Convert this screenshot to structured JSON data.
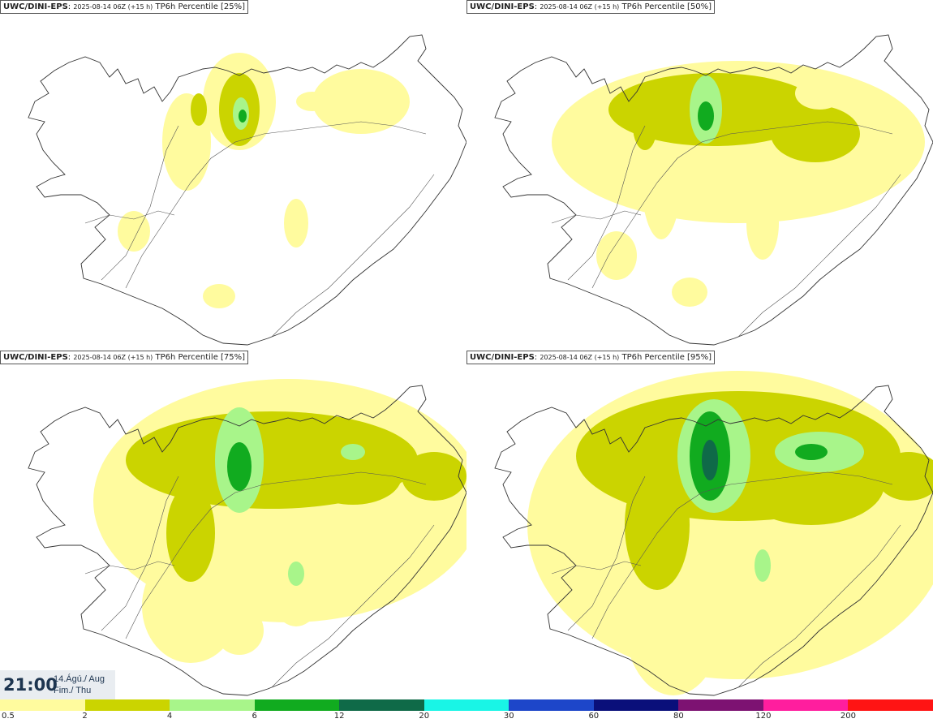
{
  "panels": [
    {
      "model": "UWC/DINI-EPS",
      "meta": "2025-08-14 06Z (+15 h)",
      "title": "TP6h Percentile [25%]"
    },
    {
      "model": "UWC/DINI-EPS",
      "meta": "2025-08-14 06Z (+15 h)",
      "title": "TP6h Percentile [50%]"
    },
    {
      "model": "UWC/DINI-EPS",
      "meta": "2025-08-14 06Z (+15 h)",
      "title": "TP6h Percentile [75%]"
    },
    {
      "model": "UWC/DINI-EPS",
      "meta": "2025-08-14 06Z (+15 h)",
      "title": "TP6h Percentile [95%]"
    }
  ],
  "valid_time": {
    "time": "21:00",
    "date_line1": "14.Ágú./ Aug",
    "date_line2": "Fim./ Thu"
  },
  "legend": {
    "labels": [
      "0.5",
      "2",
      "4",
      "6",
      "12",
      "20",
      "30",
      "60",
      "80",
      "120",
      "200"
    ],
    "colors": [
      "#fffb9e",
      "#cbd400",
      "#a8f58a",
      "#11ab1f",
      "#0f6a48",
      "#19f5e6",
      "#1d46c9",
      "#0a0f7a",
      "#7d1272",
      "#ff1e9e",
      "#ff1414"
    ]
  }
}
